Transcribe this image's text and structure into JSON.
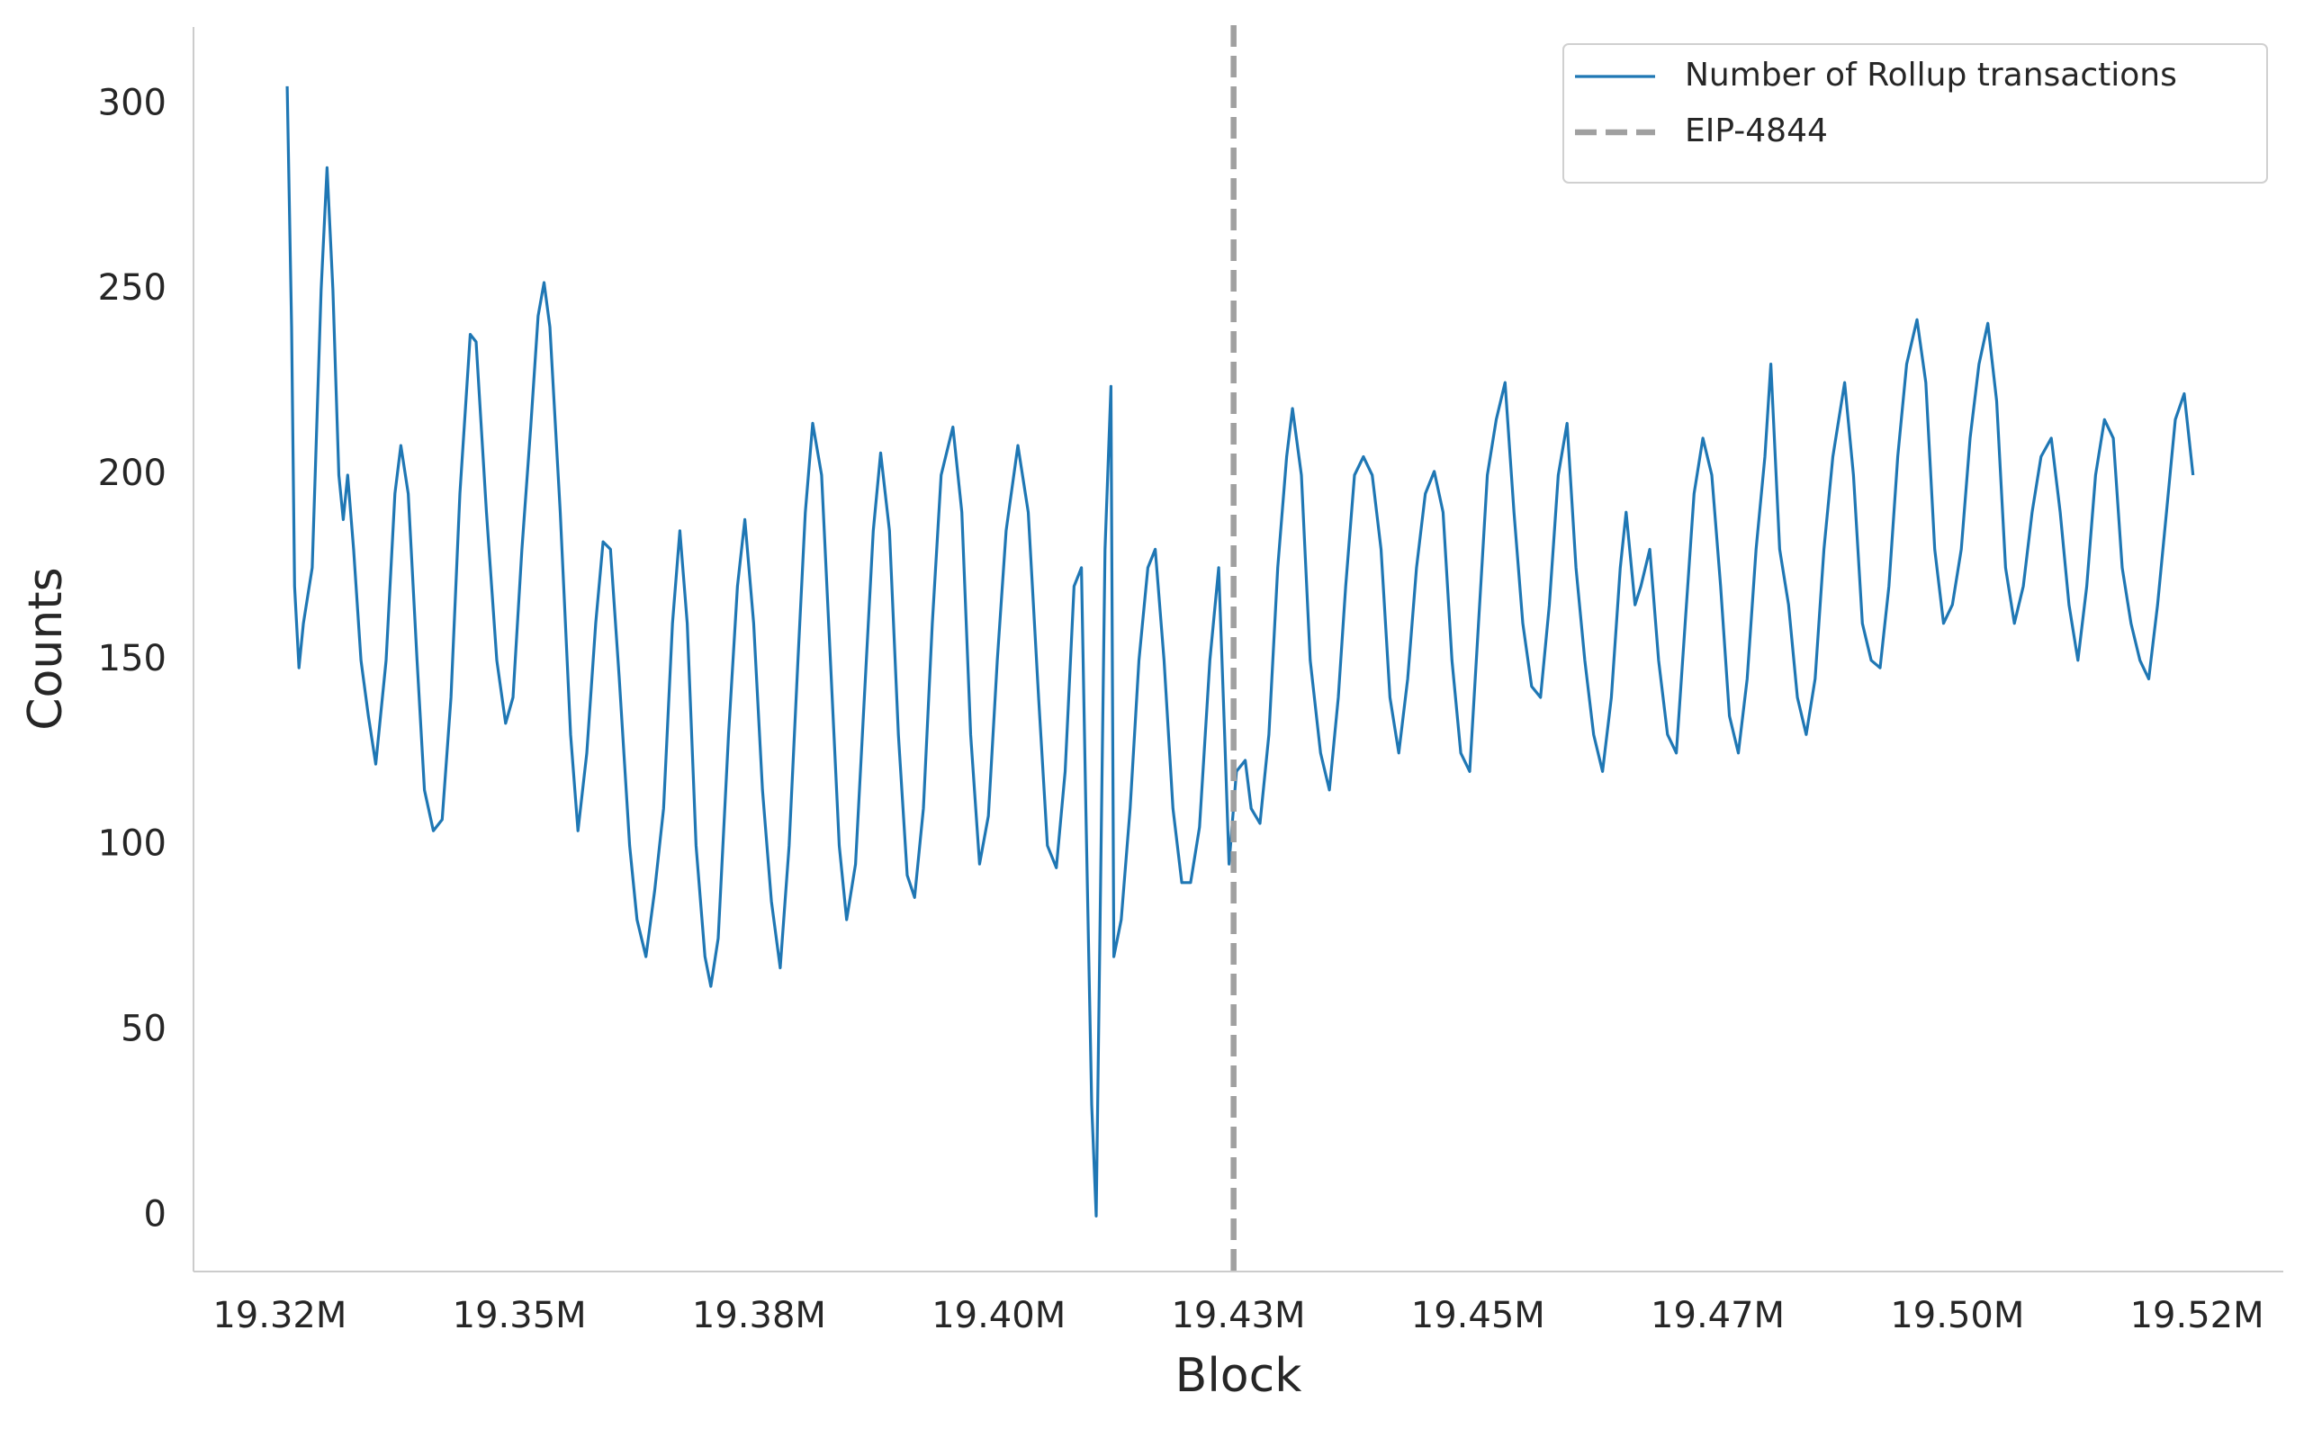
{
  "chart_data": {
    "type": "line",
    "x_label": "Block",
    "y_label": "Counts",
    "x": [
      19325770,
      19326232,
      19326540,
      19327002,
      19327464,
      19328388,
      19329312,
      19329928,
      19330544,
      19331160,
      19331622,
      19332084,
      19332700,
      19333470,
      19334240,
      19335010,
      19336088,
      19337012,
      19337628,
      19338398,
      19339322,
      19340092,
      19341016,
      19341940,
      19342864,
      19343788,
      19344866,
      19345482,
      19346560,
      19347638,
      19348562,
      19349332,
      19350256,
      19351180,
      19351950,
      19352566,
      19353182,
      19354260,
      19355338,
      19356108,
      19357032,
      19357956,
      19358726,
      19359496,
      19360420,
      19361498,
      19362268,
      19363192,
      19364116,
      19365040,
      19365964,
      19366734,
      19367504,
      19368428,
      19369352,
      19369968,
      19370738,
      19371816,
      19372740,
      19373510,
      19374434,
      19375358,
      19376282,
      19377206,
      19378130,
      19379054,
      19379824,
      19380594,
      19381518,
      19382442,
      19383366,
      19384136,
      19385060,
      19385984,
      19386908,
      19387678,
      19388602,
      19389526,
      19390450,
      19391220,
      19392144,
      19393068,
      19393992,
      19395224,
      19396148,
      19397072,
      19397996,
      19398920,
      19399844,
      19400768,
      19402000,
      19403078,
      19404156,
      19405080,
      19406004,
      19406928,
      19407852,
      19408622,
      19409084,
      19409700,
      19410162,
      19410624,
      19411086,
      19411702,
      19412010,
      19412780,
      19413704,
      19414628,
      19415552,
      19416322,
      19417246,
      19418170,
      19419094,
      19420018,
      19420942,
      19422020,
      19422944,
      19423560,
      19424022,
      19424792,
      19425716,
      19426332,
      19427256,
      19428180,
      19429104,
      19430028,
      19430644,
      19431568,
      19432492,
      19433570,
      19434494,
      19435418,
      19436188,
      19437112,
      19438036,
      19438960,
      19439884,
      19440808,
      19441732,
      19442656,
      19443580,
      19444504,
      19445428,
      19446352,
      19447276,
      19448200,
      19449124,
      19450048,
      19450972,
      19451896,
      19452820,
      19453744,
      19454668,
      19455592,
      19456516,
      19457440,
      19458364,
      19459288,
      19460212,
      19461136,
      19462060,
      19462984,
      19463908,
      19464832,
      19465448,
      19466372,
      19466988,
      19467912,
      19468836,
      19469760,
      19470684,
      19471608,
      19472532,
      19473456,
      19474380,
      19475304,
      19476228,
      19477152,
      19478076,
      19479000,
      19479924,
      19480540,
      19481464,
      19482388,
      19483312,
      19484236,
      19485160,
      19486084,
      19487008,
      19488240,
      19489164,
      19490088,
      19491012,
      19491936,
      19492860,
      19493784,
      19494708,
      19495786,
      19496710,
      19497634,
      19498558,
      19499482,
      19500406,
      19501330,
      19502254,
      19503178,
      19504102,
      19505026,
      19505950,
      19506874,
      19507798,
      19508722,
      19509800,
      19510724,
      19511648,
      19512572,
      19513496,
      19514420,
      19515344,
      19516268,
      19517192,
      19518116,
      19519040,
      19519964,
      19520888,
      19521812,
      19522736,
      19523660,
      19524584
    ],
    "series": [
      {
        "name": "Number of Rollup transactions",
        "color": "#1f77b4",
        "values": [
          305,
          240,
          170,
          148,
          160,
          175,
          250,
          283,
          250,
          200,
          188,
          200,
          180,
          150,
          135,
          122,
          150,
          195,
          208,
          195,
          150,
          115,
          104,
          107,
          140,
          195,
          238,
          236,
          190,
          150,
          133,
          140,
          180,
          213,
          243,
          252,
          240,
          190,
          130,
          104,
          125,
          160,
          182,
          180,
          145,
          100,
          80,
          70,
          88,
          110,
          160,
          185,
          160,
          100,
          70,
          62,
          75,
          130,
          170,
          188,
          160,
          115,
          85,
          67,
          100,
          150,
          190,
          214,
          200,
          150,
          100,
          80,
          95,
          140,
          185,
          206,
          185,
          130,
          92,
          86,
          110,
          160,
          200,
          213,
          190,
          130,
          95,
          108,
          150,
          185,
          208,
          190,
          140,
          100,
          94,
          120,
          170,
          175,
          110,
          30,
          0,
          90,
          180,
          224,
          70,
          80,
          110,
          150,
          175,
          180,
          150,
          110,
          90,
          90,
          105,
          150,
          175,
          130,
          95,
          120,
          123,
          110,
          106,
          130,
          175,
          205,
          218,
          200,
          150,
          125,
          115,
          140,
          170,
          200,
          205,
          200,
          180,
          140,
          125,
          145,
          175,
          195,
          201,
          190,
          150,
          125,
          120,
          160,
          200,
          215,
          225,
          190,
          160,
          143,
          140,
          165,
          200,
          214,
          175,
          150,
          130,
          120,
          140,
          175,
          190,
          165,
          170,
          180,
          150,
          130,
          125,
          160,
          195,
          210,
          200,
          170,
          135,
          125,
          145,
          180,
          205,
          230,
          180,
          165,
          140,
          130,
          145,
          180,
          205,
          225,
          200,
          160,
          150,
          148,
          170,
          205,
          230,
          242,
          225,
          180,
          160,
          165,
          180,
          210,
          230,
          241,
          220,
          175,
          160,
          170,
          190,
          205,
          210,
          190,
          165,
          150,
          170,
          200,
          215,
          210,
          175,
          160,
          150,
          145,
          165,
          190,
          215,
          222,
          200
        ]
      }
    ],
    "vlines": [
      {
        "name": "EIP-4844",
        "x": 19424500,
        "color": "#a0a0a0",
        "style": "dashed"
      }
    ],
    "xlim": [
      19316000,
      19534000
    ],
    "xticks": [
      {
        "value": 19325000,
        "label": "19.32M"
      },
      {
        "value": 19350000,
        "label": "19.35M"
      },
      {
        "value": 19375000,
        "label": "19.38M"
      },
      {
        "value": 19400000,
        "label": "19.40M"
      },
      {
        "value": 19425000,
        "label": "19.43M"
      },
      {
        "value": 19450000,
        "label": "19.45M"
      },
      {
        "value": 19475000,
        "label": "19.47M"
      },
      {
        "value": 19500000,
        "label": "19.50M"
      },
      {
        "value": 19525000,
        "label": "19.52M"
      }
    ],
    "ylim": [
      -15,
      321
    ],
    "yticks": [
      0,
      50,
      100,
      150,
      200,
      250,
      300
    ],
    "grid": false,
    "legend": "upper right"
  }
}
